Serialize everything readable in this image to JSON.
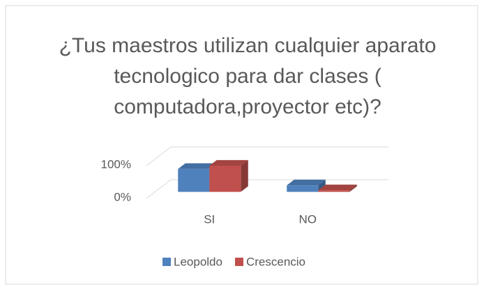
{
  "chart_data": {
    "type": "bar3d",
    "title": "¿Tus maestros utilizan cualquier aparato tecnologico para dar clases ( computadora,proyector etc)?",
    "categories": [
      "SI",
      "NO"
    ],
    "series": [
      {
        "name": "Leopoldo",
        "color": "#4f81bd",
        "values": [
          70,
          20
        ]
      },
      {
        "name": "Crescencio",
        "color": "#c0504d",
        "values": [
          80,
          5
        ]
      }
    ],
    "ylim": [
      0,
      100
    ],
    "yticks": [
      {
        "value": 0,
        "label": "0%"
      },
      {
        "value": 100,
        "label": "100%"
      }
    ],
    "grid": true,
    "legend": "bottom"
  }
}
